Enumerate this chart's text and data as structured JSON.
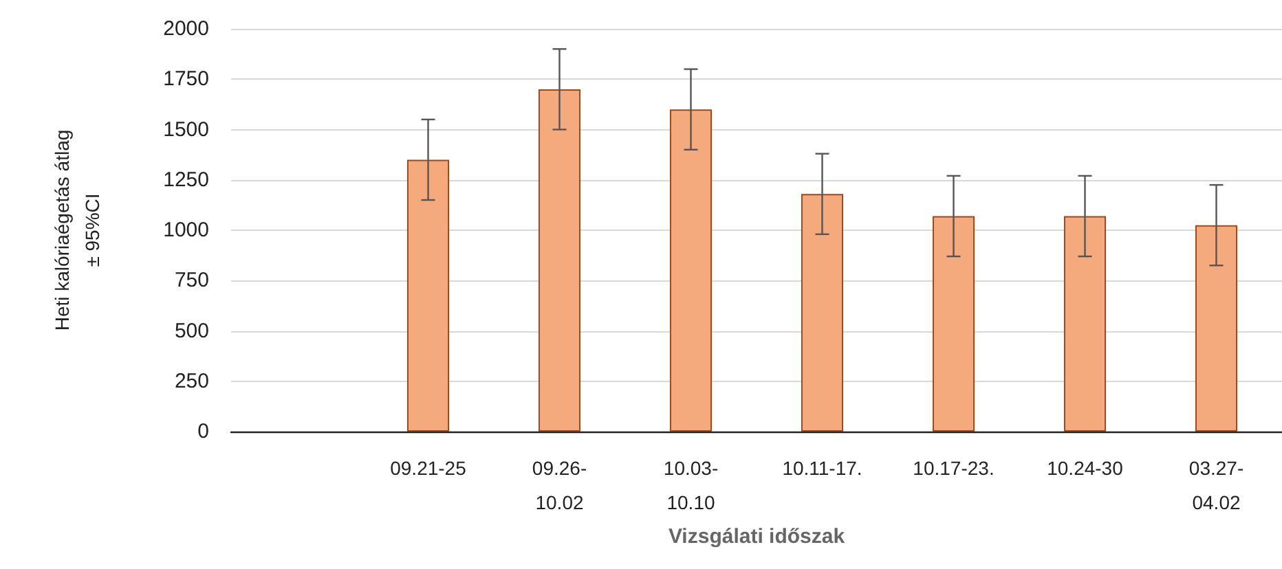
{
  "chart_data": {
    "type": "bar",
    "xlabel": "Vizsgálati időszak",
    "ylabel": "Heti kalóriaégetás átlag\n± 95%CI",
    "categories": [
      null,
      "09.21-25",
      "09.26-10.02",
      "10.03-10.10",
      "10.11-17.",
      "10.17-23.",
      "10.24-30",
      "03.27-04.02"
    ],
    "values": [
      null,
      1350,
      1700,
      1600,
      1180,
      1070,
      1070,
      1025
    ],
    "errors": [
      null,
      200,
      200,
      200,
      200,
      200,
      200,
      200
    ],
    "color": "#f4aa7d",
    "ylim": [
      0,
      2000
    ],
    "yticks": [
      0,
      250,
      500,
      750,
      1000,
      1250,
      1500,
      1750,
      2000
    ],
    "grid": "y"
  }
}
